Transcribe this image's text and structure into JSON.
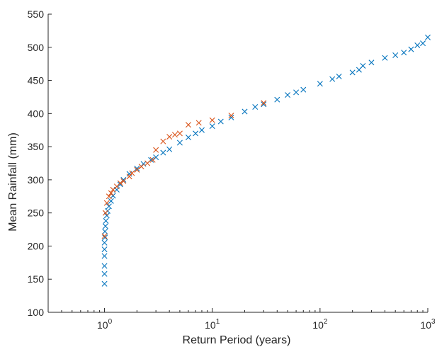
{
  "chart_data": {
    "type": "scatter",
    "title": "",
    "xlabel": "Return Period (years)",
    "ylabel": "Mean Rainfall (mm)",
    "xscale": "log",
    "xlim": [
      0.3,
      1000
    ],
    "ylim": [
      100,
      550
    ],
    "grid": false,
    "marker": "x",
    "colors": {
      "series_a": "#0072BD",
      "series_b": "#D95319"
    },
    "yticks": [
      "100",
      "150",
      "200",
      "250",
      "300",
      "350",
      "400",
      "450",
      "500",
      "550"
    ],
    "xticks": [
      {
        "base": "10",
        "exp": "0"
      },
      {
        "base": "10",
        "exp": "1"
      },
      {
        "base": "10",
        "exp": "2"
      },
      {
        "base": "10",
        "exp": "3"
      }
    ],
    "series": [
      {
        "x": [
          1.0,
          1.0,
          1.0,
          1.0,
          1.0,
          1.0,
          1.01,
          1.01,
          1.02,
          1.03,
          1.05,
          1.07,
          1.1,
          1.15,
          1.2,
          1.3,
          1.4,
          1.5,
          1.7,
          2.0,
          2.3,
          2.7,
          3.0,
          3.5,
          4.0,
          5.0,
          6.0,
          7.0,
          8.0,
          10,
          12,
          15,
          20,
          25,
          30,
          40,
          50,
          60,
          70,
          100,
          130,
          150,
          200,
          230,
          250,
          300,
          400,
          500,
          600,
          700,
          800,
          900,
          1000
        ],
        "y": [
          143,
          158,
          170,
          185,
          195,
          205,
          213,
          222,
          230,
          238,
          246,
          253,
          260,
          268,
          276,
          285,
          293,
          300,
          309,
          317,
          324,
          330,
          334,
          341,
          346,
          356,
          364,
          370,
          375,
          381,
          388,
          394,
          403,
          410,
          414,
          421,
          428,
          432,
          436,
          445,
          452,
          456,
          462,
          466,
          472,
          477,
          484,
          488,
          492,
          497,
          503,
          506,
          515
        ]
      },
      {
        "x": [
          1.0,
          1.02,
          1.05,
          1.1,
          1.15,
          1.2,
          1.3,
          1.4,
          1.5,
          1.7,
          1.8,
          2.0,
          2.2,
          2.5,
          2.8,
          3.0,
          3.5,
          4.0,
          4.5,
          5.0,
          6.0,
          7.5,
          10,
          15,
          30
        ],
        "y": [
          215,
          250,
          265,
          275,
          280,
          285,
          290,
          295,
          298,
          305,
          310,
          315,
          320,
          325,
          330,
          345,
          358,
          365,
          368,
          370,
          383,
          386,
          390,
          397,
          416
        ]
      }
    ]
  }
}
